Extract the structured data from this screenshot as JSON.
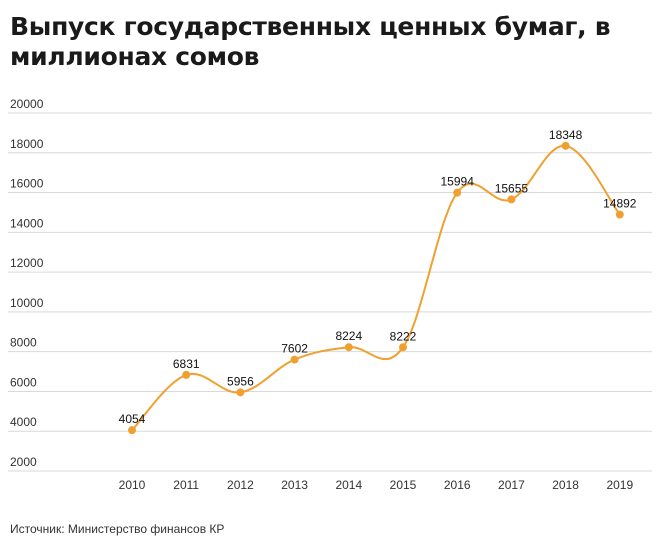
{
  "title": "Выпуск государственных ценных бумаг, в миллионах сомов",
  "source": "Источник: Министерство финансов КР",
  "colors": {
    "line": "#f0a030",
    "grid": "#d9d9d9"
  },
  "chart_data": {
    "type": "line",
    "title": "Выпуск государственных ценных бумаг, в миллионах сомов",
    "xlabel": "",
    "ylabel": "",
    "ylim": [
      2000,
      20000
    ],
    "yticks": [
      2000,
      4000,
      6000,
      8000,
      10000,
      12000,
      14000,
      16000,
      18000,
      20000
    ],
    "grid": true,
    "categories": [
      "2010",
      "2011",
      "2012",
      "2013",
      "2014",
      "2015",
      "2016",
      "2017",
      "2018",
      "2019"
    ],
    "series": [
      {
        "values": [
          4054,
          6831,
          5956,
          7602,
          8224,
          8222,
          15994,
          15655,
          18348,
          14892
        ]
      }
    ]
  }
}
